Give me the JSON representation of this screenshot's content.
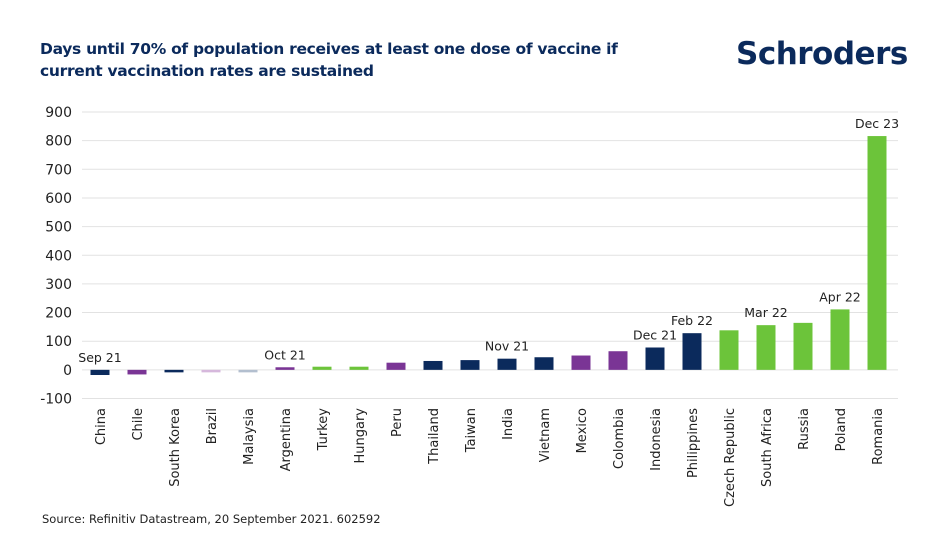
{
  "header": {
    "title": "Days until 70% of population receives at least one dose of vaccine if current vaccination rates are sustained",
    "brand": "Schroders"
  },
  "footer": {
    "source": "Source: Refinitiv Datastream, 20 September 2021. 602592"
  },
  "colors": {
    "navy": "#0b2a5c",
    "purple": "#7a3595",
    "green": "#6cc43a",
    "light_purple": "#d6b8dc",
    "light_navy": "#b3bfcf",
    "grid": "#e2e2e2",
    "title": "#0b2a5c"
  },
  "chart_data": {
    "type": "bar",
    "title": "Days until 70% of population receives at least one dose of vaccine if current vaccination rates are sustained",
    "xlabel": "",
    "ylabel": "",
    "ylim": [
      -100,
      900
    ],
    "yticks": [
      -100,
      0,
      100,
      200,
      300,
      400,
      500,
      600,
      700,
      800,
      900
    ],
    "grid": true,
    "legend": "none",
    "categories": [
      "China",
      "Chile",
      "South Korea",
      "Brazil",
      "Malaysia",
      "Argentina",
      "Turkey",
      "Hungary",
      "Peru",
      "Thailand",
      "Taiwan",
      "India",
      "Vietnam",
      "Mexico",
      "Colombia",
      "Indonesia",
      "Philippines",
      "Czech Republic",
      "South Africa",
      "Russia",
      "Poland",
      "Romania"
    ],
    "values": [
      -18,
      -16,
      -4,
      -2,
      -2,
      9,
      11,
      11,
      25,
      31,
      34,
      39,
      44,
      50,
      65,
      78,
      128,
      138,
      156,
      164,
      211,
      816
    ],
    "bar_colors": [
      "navy",
      "purple",
      "navy",
      "light_purple",
      "light_navy",
      "purple",
      "green",
      "green",
      "purple",
      "navy",
      "navy",
      "navy",
      "navy",
      "purple",
      "purple",
      "navy",
      "navy",
      "green",
      "green",
      "green",
      "green",
      "green"
    ],
    "annotations": [
      {
        "category": "China",
        "text": "Sep 21"
      },
      {
        "category": "Argentina",
        "text": "Oct 21"
      },
      {
        "category": "India",
        "text": "Nov 21"
      },
      {
        "category": "Indonesia",
        "text": "Dec 21"
      },
      {
        "category": "Philippines",
        "text": "Feb 22"
      },
      {
        "category": "South Africa",
        "text": "Mar 22"
      },
      {
        "category": "Poland",
        "text": "Apr 22"
      },
      {
        "category": "Romania",
        "text": "Dec 23"
      }
    ]
  }
}
